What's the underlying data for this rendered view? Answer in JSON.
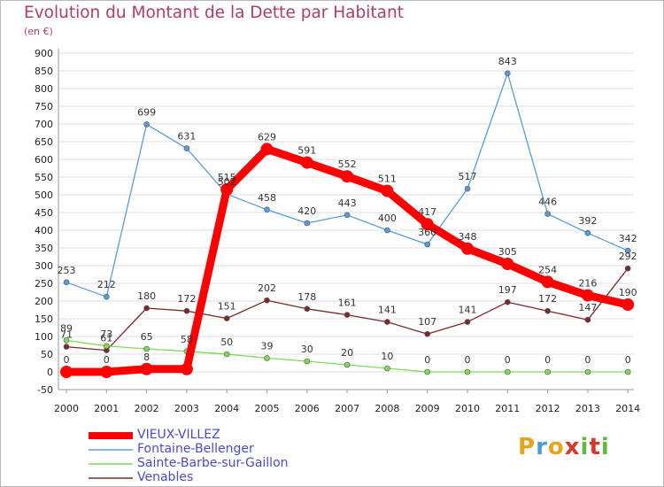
{
  "title": "Evolution du Montant de la Dette par Habitant",
  "subtitle": "(en €)",
  "logo": {
    "text": "Proxiti",
    "colors": [
      "#e8a21c",
      "#4c9ad6",
      "#e8a21c",
      "#d9362c",
      "#63b843",
      "#d9362c",
      "#63b843"
    ]
  },
  "chart_data": {
    "type": "line",
    "x": [
      "2000",
      "2001",
      "2002",
      "2003",
      "2004",
      "2005",
      "2006",
      "2007",
      "2008",
      "2009",
      "2010",
      "2011",
      "2012",
      "2013",
      "2014"
    ],
    "ylim": [
      -50,
      900
    ],
    "yticks": [
      -50,
      0,
      50,
      100,
      150,
      200,
      250,
      300,
      350,
      400,
      450,
      500,
      550,
      600,
      650,
      700,
      750,
      800,
      850,
      900
    ],
    "grid": "horizontal",
    "legend_position": "bottom-left",
    "series": [
      {
        "name": "VIEUX-VILLEZ",
        "color": "#ff0000",
        "values": [
          0,
          0,
          8,
          8,
          515,
          629,
          591,
          552,
          511,
          417,
          348,
          305,
          254,
          216,
          190
        ],
        "labels": [
          "0",
          "0",
          "8",
          "",
          "515",
          "629",
          "591",
          "552",
          "511",
          "417",
          "348",
          "305",
          "254",
          "216",
          "190"
        ]
      },
      {
        "name": "Fontaine-Bellenger",
        "color": "#5b9bd5",
        "values": [
          253,
          212,
          699,
          631,
          502,
          458,
          420,
          443,
          400,
          360,
          517,
          843,
          446,
          392,
          342
        ],
        "labels": [
          "253",
          "212",
          "699",
          "631",
          "502",
          "458",
          "420",
          "443",
          "400",
          "360",
          "517",
          "843",
          "446",
          "392",
          "342"
        ]
      },
      {
        "name": "Sainte-Barbe-sur-Gaillon",
        "color": "#7ed957",
        "values": [
          89,
          73,
          65,
          58,
          50,
          39,
          30,
          20,
          10,
          0,
          0,
          0,
          0,
          0,
          0
        ],
        "labels": [
          "89",
          "73",
          "65",
          "58",
          "50",
          "39",
          "30",
          "20",
          "10",
          "0",
          "0",
          "0",
          "0",
          "0",
          "0"
        ]
      },
      {
        "name": "Venables",
        "color": "#7a2a2a",
        "values": [
          71,
          61,
          180,
          172,
          151,
          202,
          178,
          161,
          141,
          107,
          141,
          197,
          172,
          147,
          292
        ],
        "labels": [
          "71",
          "61",
          "180",
          "172",
          "151",
          "202",
          "178",
          "161",
          "141",
          "107",
          "141",
          "197",
          "172",
          "147",
          "292"
        ]
      }
    ]
  }
}
